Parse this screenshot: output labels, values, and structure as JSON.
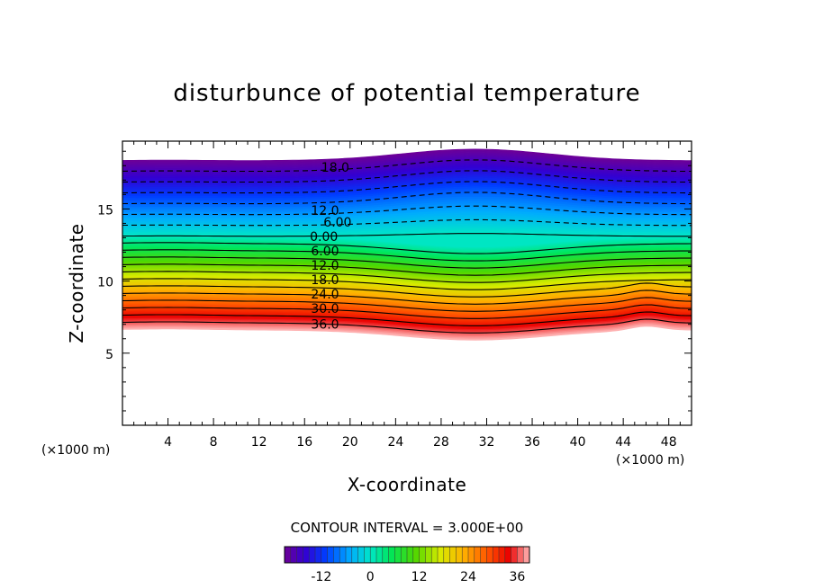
{
  "chart_data": {
    "type": "contour",
    "title": "disturbunce of potential temperature",
    "xlabel": "X-coordinate",
    "ylabel": "Z-coordinate",
    "x_unit": "(×1000 m)",
    "x_unit_right": "(×1000 m)",
    "xlim": [
      0,
      50
    ],
    "ylim": [
      0,
      19.7
    ],
    "xticks": [
      4,
      8,
      12,
      16,
      20,
      24,
      28,
      32,
      36,
      40,
      44,
      48
    ],
    "yticks": [
      5,
      10,
      15
    ],
    "contour_interval_label": "CONTOUR INTERVAL = 3.000E+00",
    "field_range": [
      -21,
      39
    ],
    "levels": [
      -21,
      -18,
      -15,
      -12,
      -9,
      -6,
      -3,
      0,
      3,
      6,
      9,
      12,
      15,
      18,
      21,
      24,
      27,
      30,
      33,
      36,
      39
    ],
    "contour_labels": [
      {
        "text": "18.0",
        "x": 18.7,
        "z": 17.9
      },
      {
        "text": "12.0",
        "x": 17.8,
        "z": 14.9
      },
      {
        "text": "6.00",
        "x": 18.9,
        "z": 14.1
      },
      {
        "text": "0.00",
        "x": 17.7,
        "z": 13.1
      },
      {
        "text": "6.00",
        "x": 17.8,
        "z": 12.1
      },
      {
        "text": "12.0",
        "x": 17.8,
        "z": 11.1
      },
      {
        "text": "18.0",
        "x": 17.8,
        "z": 10.1
      },
      {
        "text": "24.0",
        "x": 17.8,
        "z": 9.1
      },
      {
        "text": "30.0",
        "x": 17.8,
        "z": 8.1
      },
      {
        "text": "36.0",
        "x": 17.8,
        "z": 7.0
      }
    ],
    "colorbar": {
      "ticks": [
        -12,
        0,
        12,
        24,
        36
      ],
      "tick_labels": [
        "-12",
        "0",
        "12",
        "24",
        "36"
      ]
    }
  }
}
